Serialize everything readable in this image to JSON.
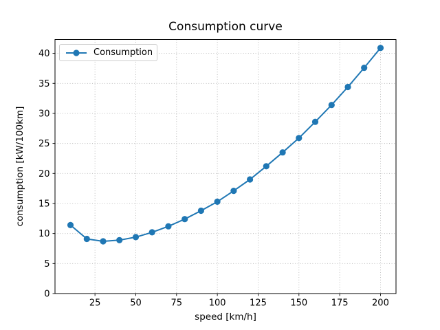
{
  "chart_data": {
    "type": "line",
    "title": "Consumption curve",
    "xlabel": "speed [km/h]",
    "ylabel": "consumption [kW/100km]",
    "series": [
      {
        "name": "Consumption",
        "color": "#1f77b4",
        "marker": "circle",
        "x": [
          10,
          20,
          30,
          40,
          50,
          60,
          70,
          80,
          90,
          100,
          110,
          120,
          130,
          140,
          150,
          160,
          170,
          180,
          190,
          200
        ],
        "values": [
          11.4,
          9.1,
          8.7,
          8.9,
          9.4,
          10.2,
          11.2,
          12.4,
          13.8,
          15.3,
          17.1,
          19.0,
          21.2,
          23.5,
          25.9,
          28.6,
          31.4,
          34.4,
          37.6,
          40.9
        ]
      }
    ],
    "xlim": [
      0.5,
      209.5
    ],
    "ylim": [
      0,
      42.3
    ],
    "xticks": [
      25,
      50,
      75,
      100,
      125,
      150,
      175,
      200
    ],
    "yticks": [
      0,
      5,
      10,
      15,
      20,
      25,
      30,
      35,
      40
    ],
    "grid": true,
    "grid_style": "dotted",
    "legend": {
      "label": "Consumption",
      "position": "upper left"
    }
  },
  "colors": {
    "line": "#1f77b4",
    "grid": "#b5b5b5",
    "spine": "#000000",
    "tick": "#000000",
    "text": "#000000",
    "legend_border": "#cccccc",
    "background": "#ffffff"
  }
}
